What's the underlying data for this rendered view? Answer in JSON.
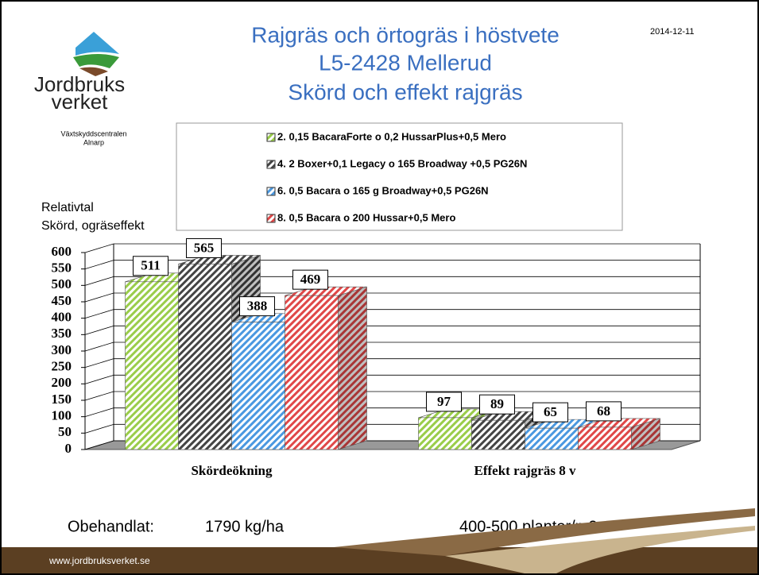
{
  "slide": {
    "title": [
      "Rajgräs och örtogräs i höstvete",
      "L5-2428 Mellerud",
      "Skörd och effekt rajgräs"
    ],
    "date": "2014-12-11",
    "logo": [
      "Jordbruks",
      "verket"
    ],
    "org": [
      "Växtskyddscentralen",
      "Alnarp"
    ],
    "notes": [
      "Obehandlat:",
      "1790 kg/ha",
      "400-500 plantor/m2"
    ],
    "url": "www.jordbruksverket.se"
  },
  "chart_data": {
    "type": "bar",
    "ylabel": [
      "Relativtal",
      "Skörd, ogräseffekt"
    ],
    "categories": [
      "Skördeökning",
      "Effekt rajgräs 8 v"
    ],
    "series": [
      {
        "name": "2. 0,15 BacaraForte o 0,2 HussarPlus+0,5 Mero",
        "color": "#9acd4a",
        "values": [
          511,
          97
        ]
      },
      {
        "name": "4. 2 Boxer+0,1 Legacy o 165 Broadway +0,5 PG26N",
        "color": "#444444",
        "values": [
          565,
          89
        ]
      },
      {
        "name": "6. 0,5 Bacara o 165 g Broadway+0,5 PG26N",
        "color": "#4a98e0",
        "values": [
          388,
          65
        ]
      },
      {
        "name": "8. 0,5 Bacara o 200 Hussar+0,5 Mero",
        "color": "#e04848",
        "values": [
          469,
          68
        ]
      }
    ],
    "ylim": [
      0,
      600
    ],
    "yticks": [
      0,
      50,
      100,
      150,
      200,
      250,
      300,
      350,
      400,
      450,
      500,
      550,
      600
    ],
    "grid": true
  }
}
